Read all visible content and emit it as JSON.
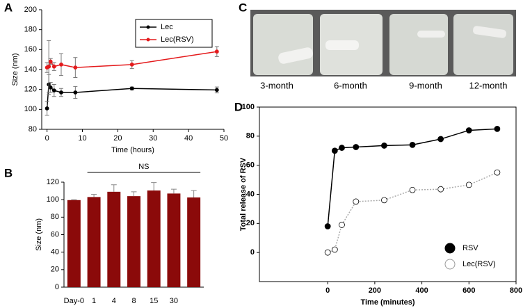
{
  "chart_data": [
    {
      "type": "line",
      "panel_label": "A",
      "xlabel": "Time (hours)",
      "ylabel": "Size (nm)",
      "x": [
        0,
        0.5,
        1,
        2,
        4,
        8,
        24,
        48
      ],
      "series": [
        {
          "name": "Lec",
          "color": "#000000",
          "values": [
            101,
            125,
            122,
            119,
            117,
            117,
            121,
            119.5
          ],
          "errors": [
            7,
            10,
            5,
            6,
            4,
            6,
            1.5,
            3
          ]
        },
        {
          "name": "Lec(RSV)",
          "color": "#e41a1c",
          "values": [
            142,
            143,
            148,
            143,
            145,
            142,
            145,
            158
          ],
          "errors": [
            5,
            26,
            3,
            4,
            11,
            10,
            4,
            5
          ]
        }
      ],
      "xlim": [
        -1.5,
        50
      ],
      "ylim": [
        80,
        200
      ],
      "xticks": [
        0,
        10,
        20,
        30,
        40,
        50
      ],
      "yticks": [
        80,
        100,
        120,
        140,
        160,
        180,
        200
      ],
      "legend": "upper right"
    },
    {
      "type": "bar",
      "panel_label": "B",
      "ylabel": "Size (nm)",
      "categories": [
        "Day-0",
        "1",
        "4",
        "8",
        "15",
        "30",
        null
      ],
      "values": [
        99.5,
        103,
        109,
        104,
        110.5,
        107,
        102.5
      ],
      "errors": [
        0.5,
        3,
        8,
        5,
        9,
        5,
        8
      ],
      "color": "#8b0a0a",
      "ylim": [
        0,
        120
      ],
      "yticks": [
        0,
        20,
        40,
        60,
        80,
        100,
        120
      ],
      "annotation": "NS"
    },
    {
      "type": "line",
      "panel_label": "D",
      "xlabel": "Time (minutes)",
      "ylabel": "Total release of RSV",
      "x": [
        0,
        30,
        60,
        120,
        240,
        360,
        480,
        600,
        720
      ],
      "series": [
        {
          "name": "RSV",
          "color": "#000000",
          "marker": "filled",
          "line_style": "solid",
          "values": [
            18,
            70,
            72,
            72.5,
            73.5,
            74,
            78,
            84,
            85
          ]
        },
        {
          "name": "Lec(RSV)",
          "color": "#aaaaaa",
          "marker": "open",
          "line_style": "dotted",
          "values": [
            0,
            2,
            19,
            35,
            36,
            43,
            43.5,
            46.5,
            55
          ]
        }
      ],
      "xlim": [
        -290,
        800
      ],
      "ylim": [
        -20,
        100
      ],
      "xticks": [
        0,
        200,
        400,
        600,
        800
      ],
      "yticks": [
        0,
        20,
        40,
        60,
        80,
        100
      ],
      "legend": "lower right",
      "frame": true
    }
  ],
  "photo": {
    "panel_label": "C",
    "captions": [
      "3-month",
      "6-month",
      "9-month",
      "12-month"
    ]
  }
}
